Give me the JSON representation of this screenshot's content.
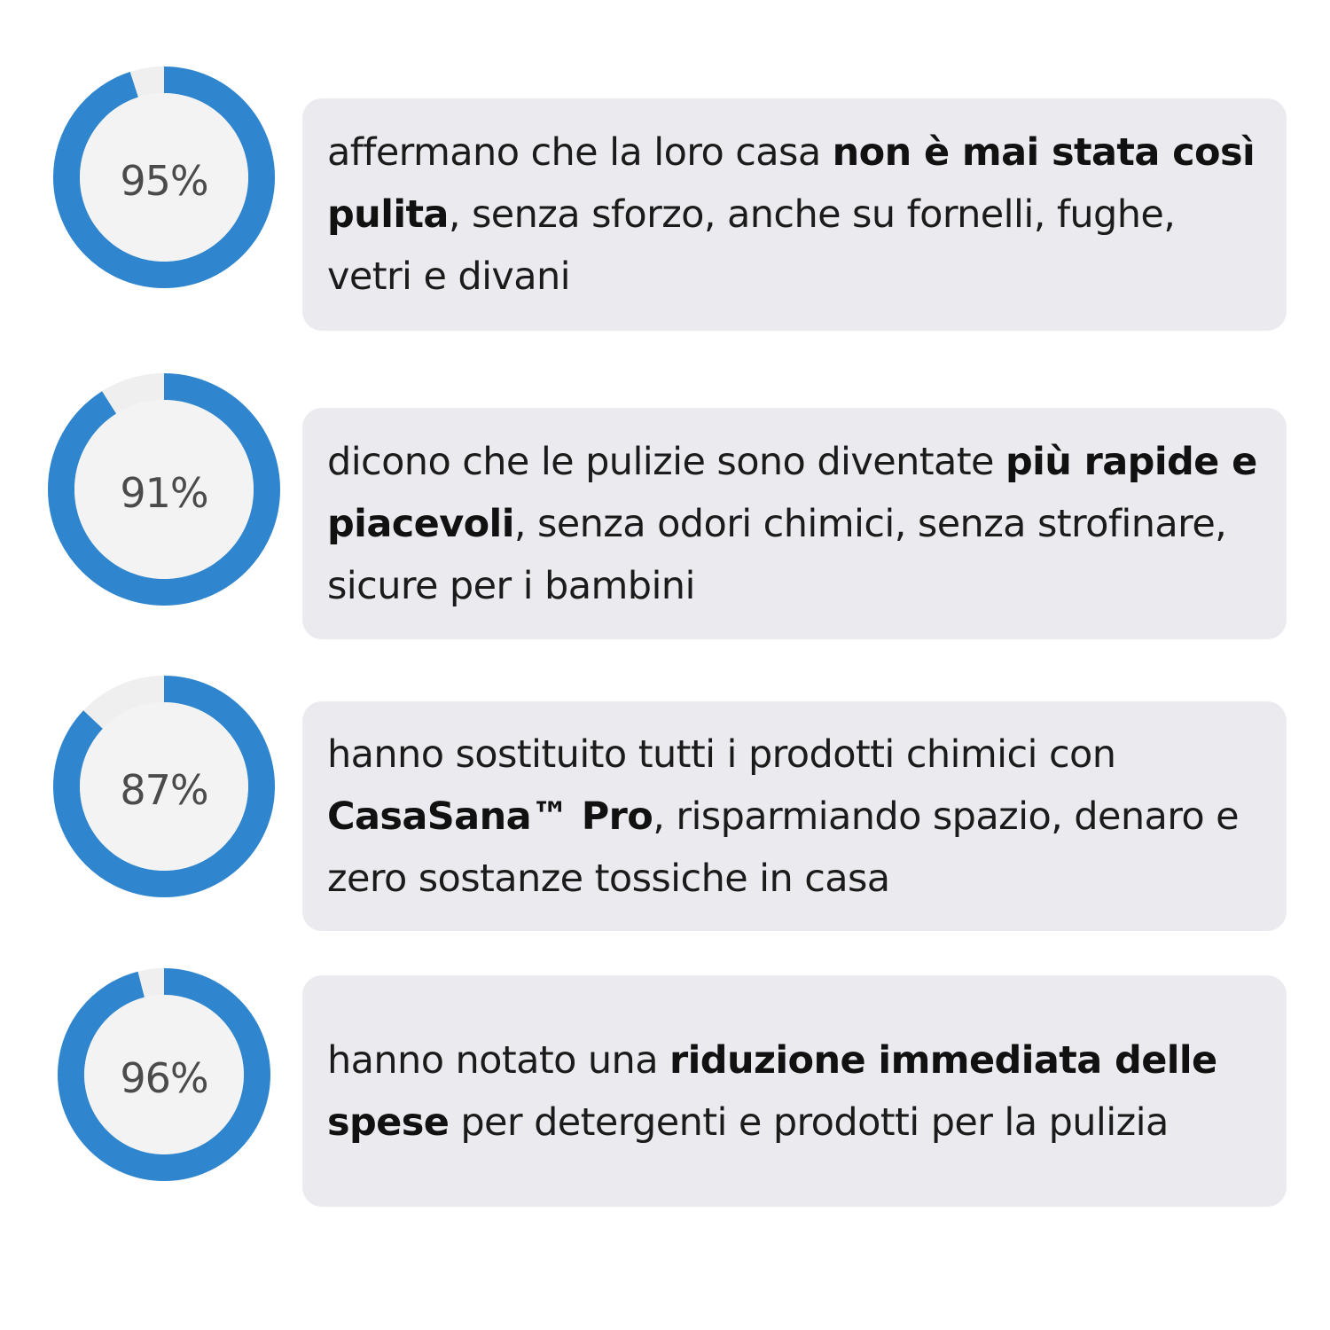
{
  "colors": {
    "background": "#ffffff",
    "ring_fill": "#2f86cf",
    "ring_track": "#efefef",
    "ring_center": "#f3f3f3",
    "card_background": "#ebebef",
    "text": "#1b1b1b",
    "percent_text": "#4b4b4b"
  },
  "stats": [
    {
      "percent_label": "95%",
      "percent_value": 95,
      "text_before": "affermano che la loro casa ",
      "text_bold": "non è mai stata così pulita",
      "text_after": ", senza sforzo, anche su fornelli, fughe, vetri e divani"
    },
    {
      "percent_label": "91%",
      "percent_value": 91,
      "text_before": "dicono che le pulizie sono diventate ",
      "text_bold": "più rapide e piacevoli",
      "text_after": ", senza odori chimici, senza strofinare, sicure per i bambini"
    },
    {
      "percent_label": "87%",
      "percent_value": 87,
      "text_before": "hanno sostituito tutti i prodotti chimici con ",
      "text_bold": "CasaSana™ Pro",
      "text_after": ", risparmiando spazio, denaro e zero sostanze tossiche in casa"
    },
    {
      "percent_label": "96%",
      "percent_value": 96,
      "text_before": "hanno notato una ",
      "text_bold": "riduzione immediata delle spese",
      "text_after": " per detergenti e prodotti per la pulizia"
    }
  ]
}
